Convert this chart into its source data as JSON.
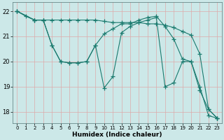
{
  "xlabel": "Humidex (Indice chaleur)",
  "bg_color": "#cce8e8",
  "grid_color": "#aacccc",
  "line_color": "#1a7a6e",
  "marker": "+",
  "markersize": 4,
  "linewidth": 0.8,
  "xlim": [
    -0.5,
    23.5
  ],
  "ylim": [
    17.55,
    22.35
  ],
  "yticks": [
    18,
    19,
    20,
    21,
    22
  ],
  "xticks": [
    0,
    1,
    2,
    3,
    4,
    5,
    6,
    7,
    8,
    9,
    10,
    11,
    12,
    13,
    14,
    15,
    16,
    17,
    18,
    19,
    20,
    21,
    22,
    23
  ],
  "series1": {
    "x": [
      0,
      1,
      2,
      3,
      4,
      5,
      6,
      7,
      8,
      9,
      10,
      11,
      12,
      13,
      14,
      15,
      16,
      17,
      18,
      19,
      20,
      21,
      22,
      23
    ],
    "y": [
      22.0,
      21.8,
      21.65,
      21.65,
      21.65,
      21.65,
      21.65,
      21.65,
      21.65,
      21.65,
      21.6,
      21.55,
      21.55,
      21.55,
      21.55,
      21.5,
      21.5,
      21.45,
      21.35,
      21.2,
      21.05,
      20.3,
      18.1,
      17.75
    ]
  },
  "series2": {
    "x": [
      0,
      2,
      3,
      4,
      5,
      6,
      7,
      8,
      9,
      10,
      11,
      12,
      13,
      14,
      15,
      16,
      17,
      18,
      19,
      20,
      21,
      22,
      23
    ],
    "y": [
      22.0,
      21.65,
      21.65,
      20.65,
      20.0,
      19.95,
      19.95,
      20.0,
      20.65,
      18.95,
      19.4,
      21.15,
      21.4,
      21.55,
      21.65,
      21.75,
      19.0,
      19.15,
      20.0,
      20.0,
      19.0,
      17.85,
      17.75
    ]
  },
  "series3": {
    "x": [
      0,
      2,
      3,
      4,
      5,
      6,
      7,
      8,
      9,
      10,
      11,
      12,
      13,
      14,
      15,
      16,
      17,
      18,
      19,
      20,
      21,
      22,
      23
    ],
    "y": [
      22.0,
      21.65,
      21.65,
      20.65,
      20.0,
      19.95,
      19.95,
      20.0,
      20.65,
      21.1,
      21.3,
      21.5,
      21.5,
      21.65,
      21.75,
      21.8,
      21.4,
      20.9,
      20.1,
      20.0,
      18.85,
      18.1,
      17.75
    ]
  }
}
